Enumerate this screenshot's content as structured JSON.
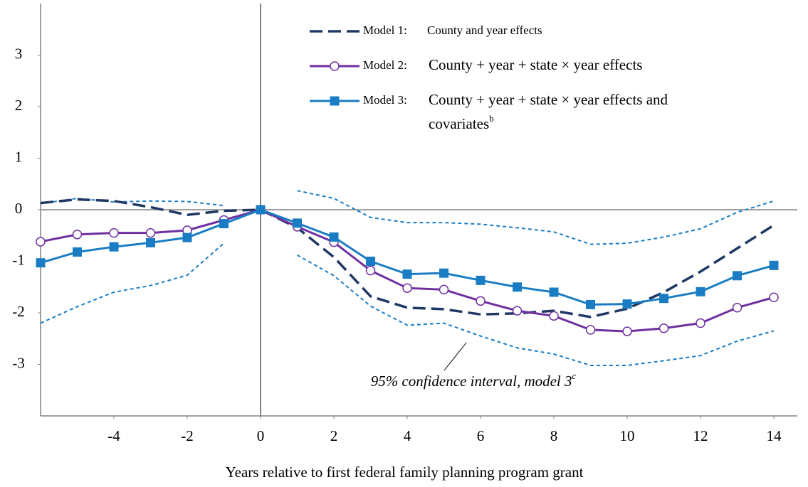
{
  "chart_data": {
    "type": "line",
    "x_axis_label": "Years relative to first federal family planning program grant",
    "x": [
      -6,
      -5,
      -4,
      -3,
      -2,
      -1,
      0,
      1,
      2,
      3,
      4,
      5,
      6,
      7,
      8,
      9,
      10,
      11,
      12,
      13,
      14
    ],
    "xlim": [
      -6,
      14.64
    ],
    "ylim": [
      -4,
      4
    ],
    "xticks": [
      -4,
      -2,
      0,
      2,
      4,
      6,
      8,
      10,
      12,
      14
    ],
    "yticks": [
      -3,
      -2,
      -1,
      0,
      1,
      2,
      3
    ],
    "grid": false,
    "series": [
      {
        "name": "Model 1:",
        "description": "County and year effects",
        "color": "#1f3864",
        "style": "dashed",
        "marker": "none",
        "values": [
          0.13,
          0.2,
          0.17,
          0.05,
          -0.1,
          -0.02,
          0,
          -0.35,
          -0.92,
          -1.68,
          -1.9,
          -1.93,
          -2.03,
          -2.01,
          -1.96,
          -2.08,
          -1.92,
          -1.6,
          -1.2,
          -0.75,
          -0.3
        ]
      },
      {
        "name": "Model 2:",
        "description": "County + year + state × year effects",
        "color": "#7030a0",
        "style": "solid",
        "marker": "circle",
        "values": [
          -0.62,
          -0.48,
          -0.45,
          -0.45,
          -0.4,
          -0.2,
          0,
          -0.33,
          -0.63,
          -1.18,
          -1.52,
          -1.55,
          -1.77,
          -1.96,
          -2.06,
          -2.33,
          -2.36,
          -2.3,
          -2.2,
          -1.9,
          -1.7
        ]
      },
      {
        "name": "Model 3:",
        "description": [
          "County + year + state × year effects and",
          "covariates"
        ],
        "description_sup": "b",
        "color": "#1a7dc4",
        "style": "solid",
        "marker": "square",
        "values": [
          -1.03,
          -0.82,
          -0.72,
          -0.64,
          -0.54,
          -0.27,
          0,
          -0.26,
          -0.53,
          -1.0,
          -1.25,
          -1.23,
          -1.37,
          -1.5,
          -1.6,
          -1.84,
          -1.83,
          -1.72,
          -1.59,
          -1.28,
          -1.08
        ]
      }
    ],
    "confidence_interval": {
      "label": "95% confidence interval, model 3",
      "label_sup": "c",
      "color": "#1a7dc4",
      "upper": [
        0.12,
        0.22,
        0.15,
        0.17,
        0.16,
        0.08,
        null,
        0.37,
        0.22,
        -0.15,
        -0.25,
        -0.25,
        -0.28,
        -0.35,
        -0.43,
        -0.67,
        -0.65,
        -0.53,
        -0.37,
        -0.05,
        0.17
      ],
      "lower": [
        -2.2,
        -1.88,
        -1.6,
        -1.47,
        -1.27,
        -0.65,
        null,
        -0.88,
        -1.28,
        -1.87,
        -2.24,
        -2.2,
        -2.45,
        -2.68,
        -2.8,
        -3.02,
        -3.02,
        -2.93,
        -2.83,
        -2.55,
        -2.35
      ]
    }
  }
}
